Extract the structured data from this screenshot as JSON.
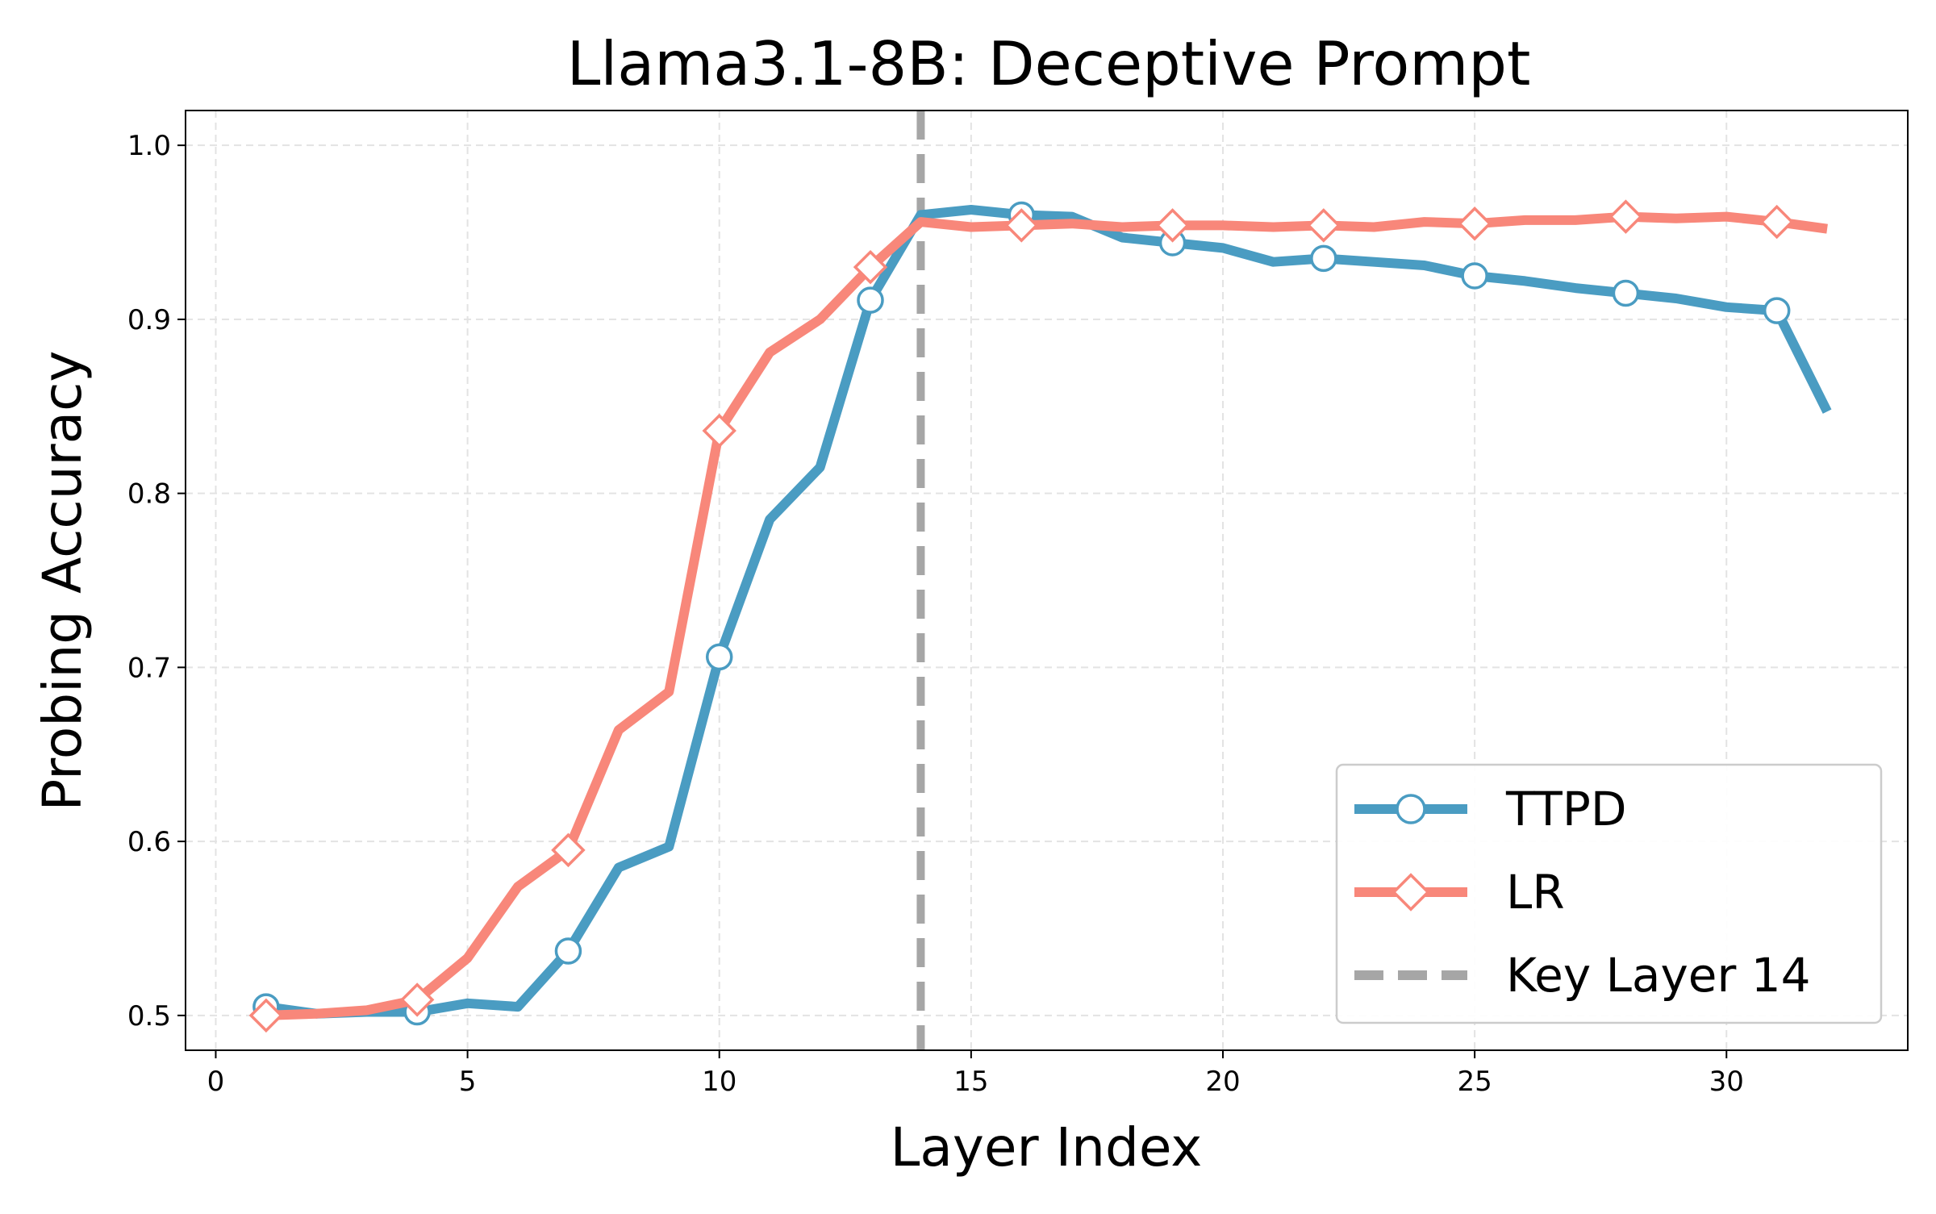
{
  "chart_data": {
    "type": "line",
    "title": "Llama3.1-8B: Deceptive Prompt",
    "xlabel": "Layer Index",
    "ylabel": "Probing Accuracy",
    "xlim": [
      -0.6,
      33.6
    ],
    "ylim": [
      0.48,
      1.02
    ],
    "xticks": [
      0,
      5,
      10,
      15,
      20,
      25,
      30
    ],
    "xtick_labels": [
      "0",
      "5",
      "10",
      "15",
      "20",
      "25",
      "30"
    ],
    "yticks": [
      0.5,
      0.6,
      0.7,
      0.8,
      0.9,
      1.0
    ],
    "ytick_labels": [
      "0.5",
      "0.6",
      "0.7",
      "0.8",
      "0.9",
      "1.0"
    ],
    "grid": true,
    "legend_position": "bottom-right",
    "x": [
      1,
      2,
      3,
      4,
      5,
      6,
      7,
      8,
      9,
      10,
      11,
      12,
      13,
      14,
      15,
      16,
      17,
      18,
      19,
      20,
      21,
      22,
      23,
      24,
      25,
      26,
      27,
      28,
      29,
      30,
      31,
      32
    ],
    "series": [
      {
        "name": "TTPD",
        "color": "#4a9cc2",
        "marker": "circle",
        "marker_every": 3,
        "values": [
          0.505,
          0.501,
          0.502,
          0.502,
          0.507,
          0.505,
          0.537,
          0.585,
          0.597,
          0.706,
          0.785,
          0.815,
          0.911,
          0.96,
          0.963,
          0.96,
          0.959,
          0.947,
          0.944,
          0.941,
          0.933,
          0.935,
          0.933,
          0.931,
          0.925,
          0.922,
          0.918,
          0.915,
          0.912,
          0.907,
          0.905,
          0.847
        ]
      },
      {
        "name": "LR",
        "color": "#f8877a",
        "marker": "diamond",
        "marker_every": 3,
        "values": [
          0.5,
          0.501,
          0.503,
          0.509,
          0.533,
          0.574,
          0.595,
          0.664,
          0.686,
          0.836,
          0.881,
          0.9,
          0.93,
          0.956,
          0.953,
          0.954,
          0.955,
          0.953,
          0.954,
          0.954,
          0.953,
          0.954,
          0.953,
          0.956,
          0.955,
          0.957,
          0.957,
          0.959,
          0.958,
          0.959,
          0.956,
          0.952
        ]
      }
    ],
    "reference_line": {
      "name": "Key Layer 14",
      "x": 14,
      "style": "dashed",
      "color": "#a6a6a6"
    }
  }
}
